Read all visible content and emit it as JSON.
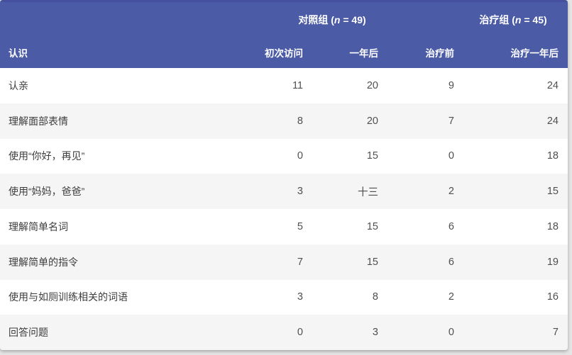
{
  "colors": {
    "header_bg": "#4B5BA6",
    "header_top_edge": "#45519E",
    "header_text": "#FFFFFF",
    "row_stripe": "#F5F5F6",
    "row_white": "#FFFFFF",
    "label_text": "#3D3D3D",
    "value_text": "#4F4F4F",
    "page_bg": "#E5E5E5"
  },
  "chart_data": {
    "type": "table",
    "title": "",
    "column_groups": [
      {
        "text": "对照组 (n = 49)",
        "prefix": "对照组 (",
        "italic_var": "n",
        "suffix": " = 49)",
        "spans_columns": [
          "初次访问",
          "一年后"
        ]
      },
      {
        "text": "治疗组 (n = 45)",
        "prefix": "治疗组 (",
        "italic_var": "n",
        "suffix": " = 45)",
        "spans_columns": [
          "治疗前",
          "治疗一年后"
        ]
      }
    ],
    "columns": [
      "认识",
      "初次访问",
      "一年后",
      "治疗前",
      "治疗一年后"
    ],
    "rows": [
      {
        "label": "认亲",
        "values": [
          "11",
          "20",
          "9",
          "24"
        ]
      },
      {
        "label": "理解面部表情",
        "values": [
          "8",
          "20",
          "7",
          "24"
        ]
      },
      {
        "label": "使用“你好，再见”",
        "values": [
          "0",
          "15",
          "0",
          "18"
        ]
      },
      {
        "label": "使用“妈妈，爸爸”",
        "values": [
          "3",
          "十三",
          "2",
          "15"
        ]
      },
      {
        "label": "理解简单名词",
        "values": [
          "5",
          "15",
          "6",
          "18"
        ]
      },
      {
        "label": "理解简单的指令",
        "values": [
          "7",
          "15",
          "6",
          "19"
        ]
      },
      {
        "label": "使用与如厕训练相关的词语",
        "values": [
          "3",
          "8",
          "2",
          "16"
        ]
      },
      {
        "label": "回答问题",
        "values": [
          "0",
          "3",
          "0",
          "7"
        ]
      }
    ]
  }
}
